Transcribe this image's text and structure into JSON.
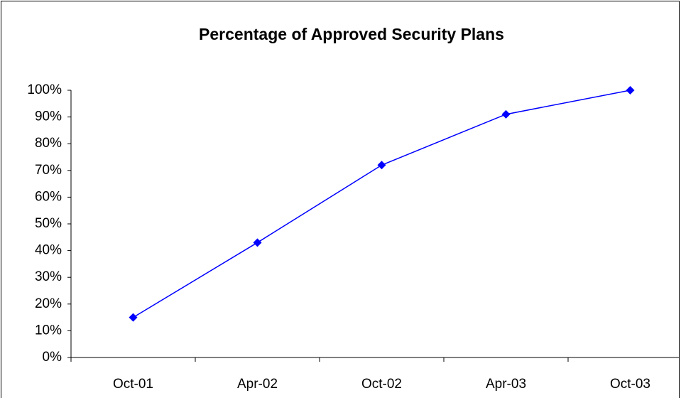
{
  "chart_data": {
    "type": "line",
    "title": "Percentage of Approved Security Plans",
    "categories": [
      "Oct-01",
      "Apr-02",
      "Oct-02",
      "Apr-03",
      "Oct-03"
    ],
    "values": [
      15,
      43,
      72,
      91,
      100
    ],
    "color": "#0000ff",
    "ylim": [
      0,
      100
    ],
    "yticks": [
      {
        "value": 0,
        "label": "0%"
      },
      {
        "value": 10,
        "label": "10%"
      },
      {
        "value": 20,
        "label": "20%"
      },
      {
        "value": 30,
        "label": "30%"
      },
      {
        "value": 40,
        "label": "40%"
      },
      {
        "value": 50,
        "label": "50%"
      },
      {
        "value": 60,
        "label": "60%"
      },
      {
        "value": 70,
        "label": "70%"
      },
      {
        "value": 80,
        "label": "80%"
      },
      {
        "value": 90,
        "label": "90%"
      },
      {
        "value": 100,
        "label": "100%"
      }
    ],
    "grid": false
  }
}
